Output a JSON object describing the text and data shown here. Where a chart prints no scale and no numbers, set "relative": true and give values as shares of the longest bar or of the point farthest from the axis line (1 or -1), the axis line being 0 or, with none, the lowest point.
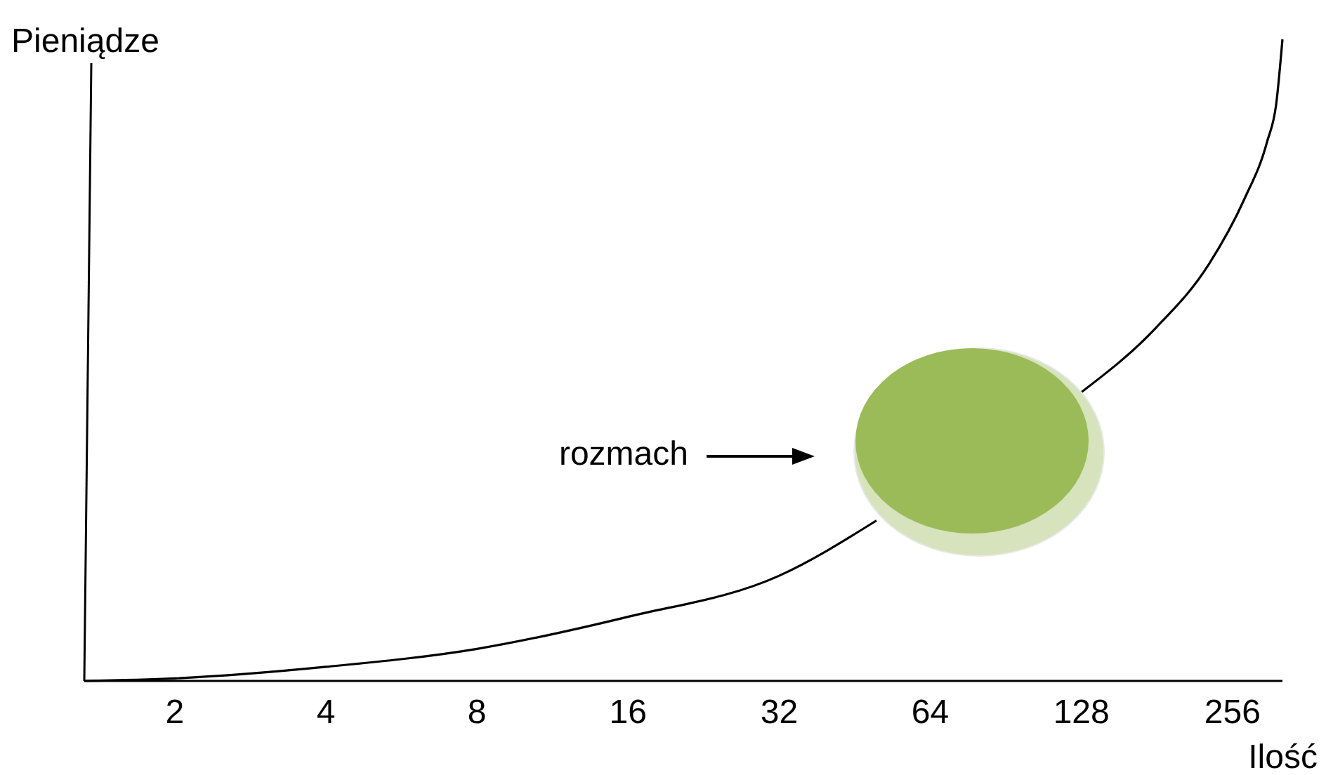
{
  "chart_data": {
    "type": "line",
    "relative": true,
    "log": "x",
    "xlabel": "Ilość",
    "ylabel": "Pieniądze",
    "annotations": [
      "rozmach"
    ],
    "x": [
      1.32,
      2,
      4,
      8,
      16,
      32,
      50,
      80,
      128,
      180,
      230,
      270,
      300,
      313,
      322
    ],
    "xlim": [
      1.32,
      322
    ],
    "xticks": [
      2,
      4,
      8,
      16,
      32,
      64,
      128,
      256
    ],
    "grid": false,
    "marker": "none",
    "line_style": "solid",
    "series": [
      {
        "color": "#000000",
        "values": [
          0,
          0.004,
          0.022,
          0.05,
          0.1,
          0.164,
          0.25,
          null,
          0.45,
          0.55,
          0.65,
          0.75,
          0.84,
          0.9,
          1
        ]
      }
    ]
  }
}
